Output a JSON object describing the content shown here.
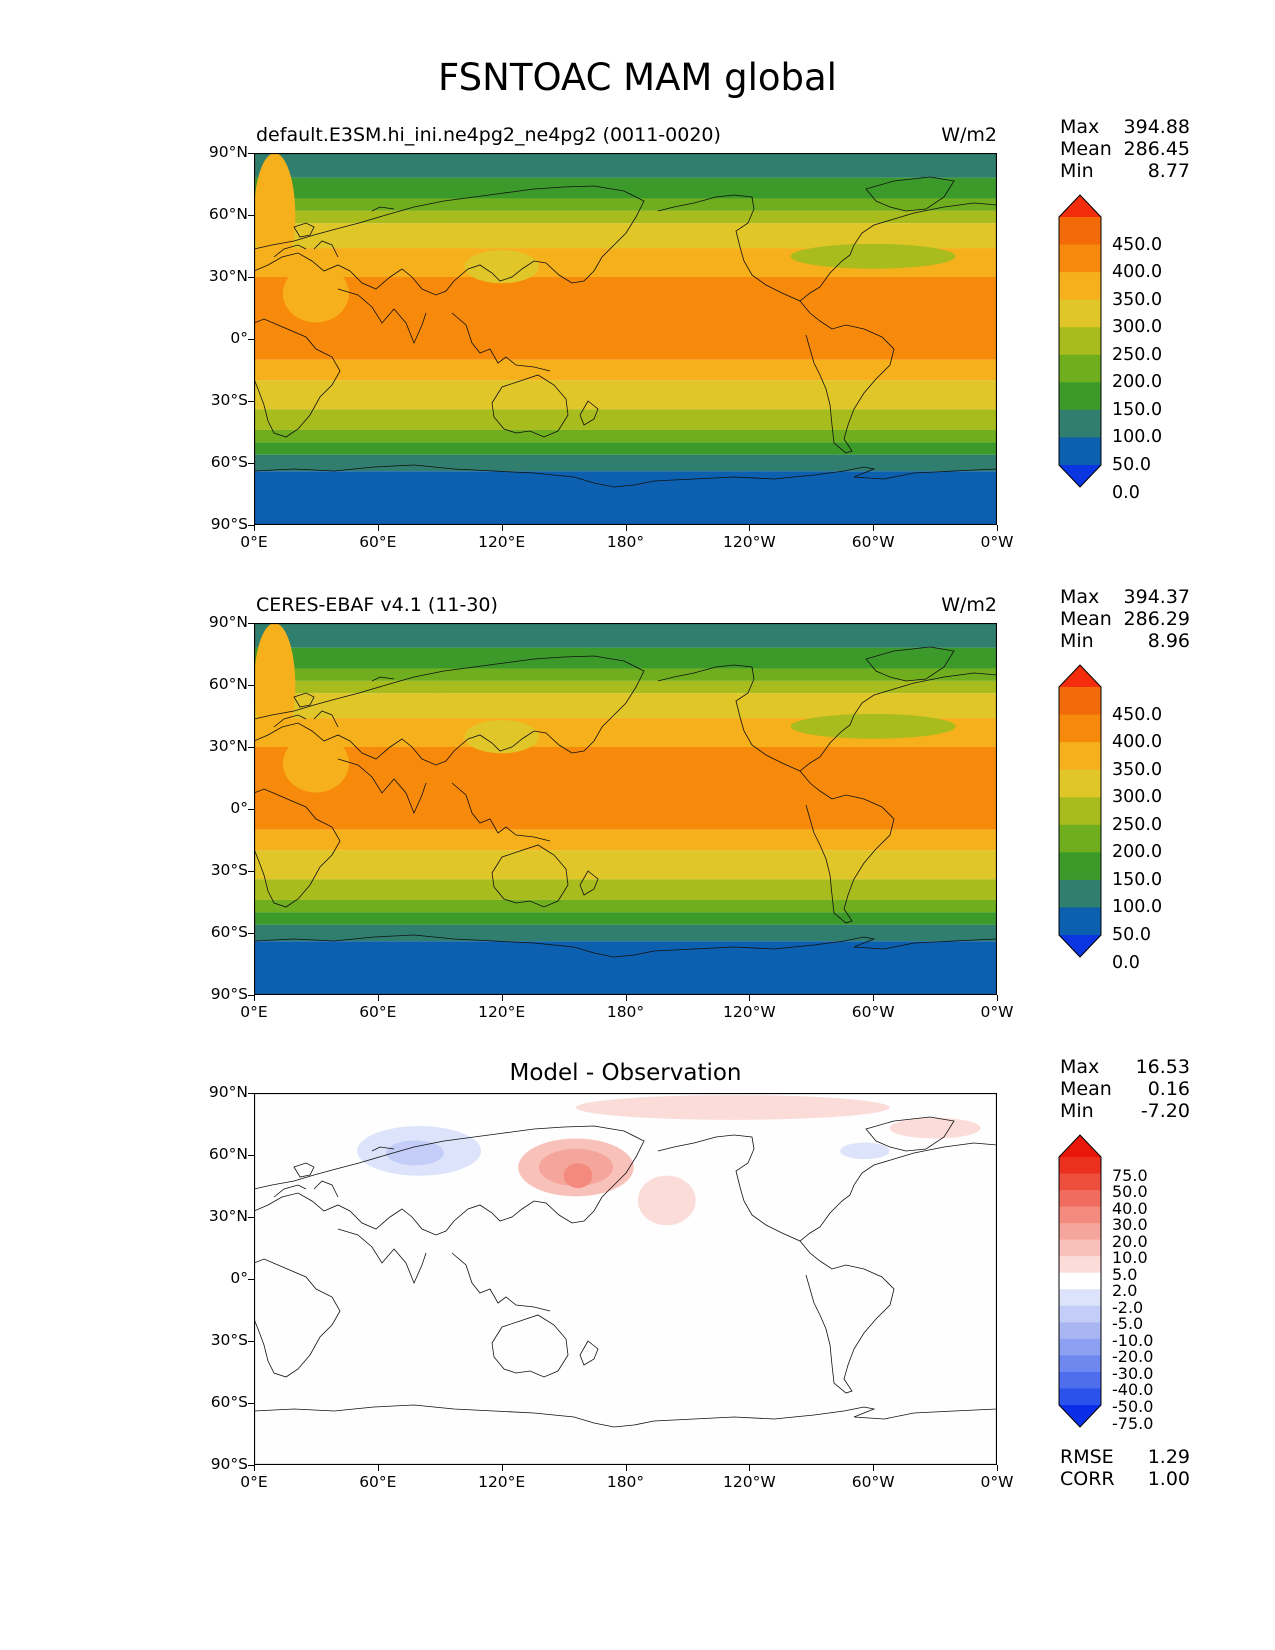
{
  "figure": {
    "title": "FSNTOAC MAM global"
  },
  "axes": {
    "lat_ticks": [
      "90°N",
      "60°N",
      "30°N",
      "0°",
      "30°S",
      "60°S",
      "90°S"
    ],
    "lon_ticks": [
      "0°E",
      "60°E",
      "120°E",
      "180°",
      "120°W",
      "60°W",
      "0°W"
    ]
  },
  "panels": [
    {
      "label_left": "default.E3SM.hi_ini.ne4pg2_ne4pg2 (0011-0020)",
      "label_right": "W/m2",
      "label_center": "",
      "stats": [
        {
          "name": "Max",
          "value": "394.88"
        },
        {
          "name": "Mean",
          "value": "286.45"
        },
        {
          "name": "Min",
          "value": "8.77"
        }
      ],
      "colorbar_labels": [
        "450.0",
        "400.0",
        "350.0",
        "300.0",
        "250.0",
        "200.0",
        "150.0",
        "100.0",
        "50.0",
        "0.0"
      ]
    },
    {
      "label_left": "CERES-EBAF v4.1 (11-30)",
      "label_right": "W/m2",
      "label_center": "",
      "stats": [
        {
          "name": "Max",
          "value": "394.37"
        },
        {
          "name": "Mean",
          "value": "286.29"
        },
        {
          "name": "Min",
          "value": "8.96"
        }
      ],
      "colorbar_labels": [
        "450.0",
        "400.0",
        "350.0",
        "300.0",
        "250.0",
        "200.0",
        "150.0",
        "100.0",
        "50.0",
        "0.0"
      ]
    },
    {
      "label_left": "",
      "label_right": "",
      "label_center": "Model - Observation",
      "stats": [
        {
          "name": "Max",
          "value": "16.53"
        },
        {
          "name": "Mean",
          "value": "0.16"
        },
        {
          "name": "Min",
          "value": "-7.20"
        }
      ],
      "colorbar_labels": [
        "75.0",
        "50.0",
        "40.0",
        "30.0",
        "20.0",
        "10.0",
        "5.0",
        "2.0",
        "-2.0",
        "-5.0",
        "-10.0",
        "-20.0",
        "-30.0",
        "-40.0",
        "-50.0",
        "-75.0"
      ],
      "metrics": [
        {
          "name": "RMSE",
          "value": "1.29"
        },
        {
          "name": "CORR",
          "value": "1.00"
        }
      ]
    }
  ],
  "colors": {
    "field_bands": [
      "#0a35e0",
      "#0d5fb0",
      "#2f7e6e",
      "#3c9a2a",
      "#6fae1f",
      "#a9bc1d",
      "#e1c62a",
      "#f6b01b",
      "#f78a0b",
      "#f36a09",
      "#f42d0c"
    ],
    "diff_bands": [
      "#0a2ee8",
      "#2c52ec",
      "#4f6eee",
      "#6f88ef",
      "#8ea0f1",
      "#a9b6f3",
      "#c3cdf7",
      "#dce3fa",
      "#ffffff",
      "#fbdcd8",
      "#f8c2bb",
      "#f5a69c",
      "#f38a7d",
      "#f06c5e",
      "#ee4e3e",
      "#eb3020",
      "#e8170a"
    ]
  }
}
